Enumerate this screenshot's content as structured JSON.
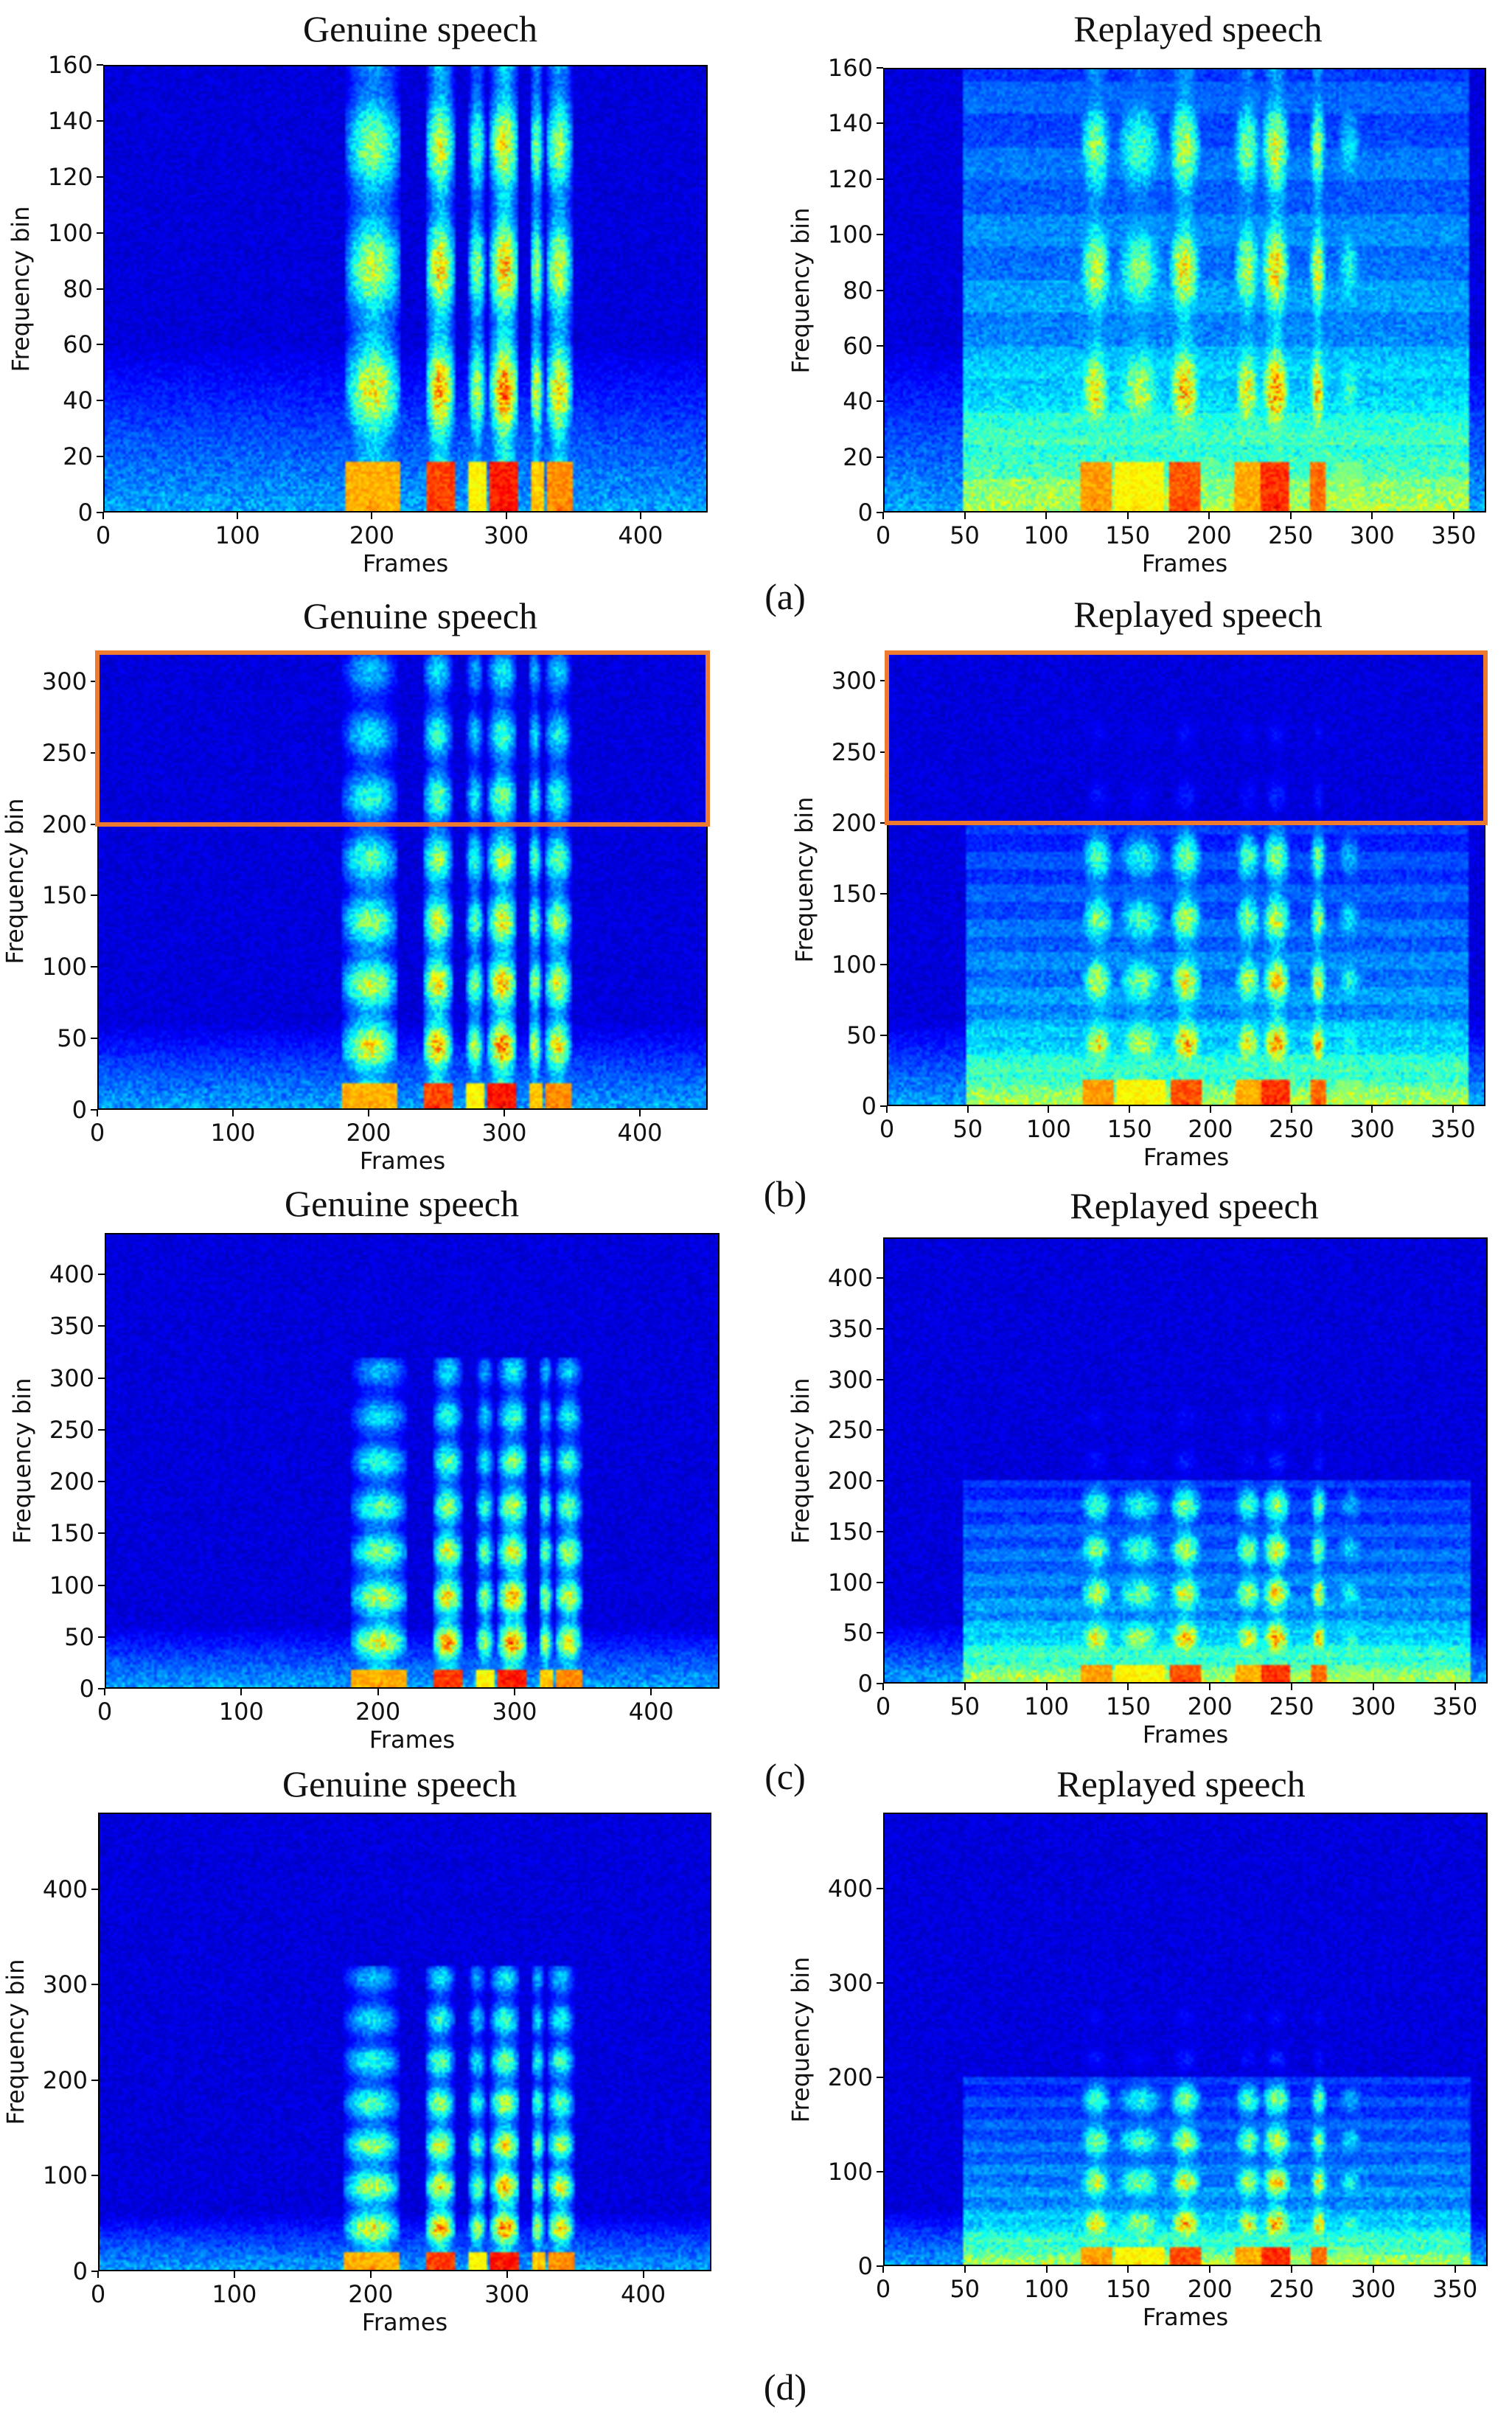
{
  "chart_data": [
    {
      "type": "heatmap",
      "panel": "a-genuine",
      "title": "Genuine speech",
      "xlabel": "Frames",
      "ylabel": "Frequency bin",
      "xlim": [
        0,
        450
      ],
      "ylim": [
        0,
        160
      ],
      "xticks": [
        0,
        100,
        200,
        300,
        400
      ],
      "yticks": [
        0,
        20,
        40,
        60,
        80,
        100,
        120,
        140,
        160
      ],
      "variant": "genuine"
    },
    {
      "type": "heatmap",
      "panel": "a-replayed",
      "title": "Replayed speech",
      "xlabel": "Frames",
      "ylabel": "Frequency bin",
      "xlim": [
        0,
        370
      ],
      "ylim": [
        0,
        160
      ],
      "xticks": [
        0,
        50,
        100,
        150,
        200,
        250,
        300,
        350
      ],
      "yticks": [
        0,
        20,
        40,
        60,
        80,
        100,
        120,
        140,
        160
      ],
      "variant": "replayed"
    },
    {
      "type": "heatmap",
      "panel": "b-genuine",
      "title": "Genuine speech",
      "xlabel": "Frames",
      "ylabel": "Frequency bin",
      "xlim": [
        0,
        450
      ],
      "ylim": [
        0,
        320
      ],
      "xticks": [
        0,
        100,
        200,
        300,
        400
      ],
      "yticks": [
        0,
        50,
        100,
        150,
        200,
        250,
        300
      ],
      "variant": "genuine",
      "highlight_range": [
        200,
        320
      ]
    },
    {
      "type": "heatmap",
      "panel": "b-replayed",
      "title": "Replayed speech",
      "xlabel": "Frames",
      "ylabel": "Frequency bin",
      "xlim": [
        0,
        370
      ],
      "ylim": [
        0,
        320
      ],
      "xticks": [
        0,
        50,
        100,
        150,
        200,
        250,
        300,
        350
      ],
      "yticks": [
        0,
        50,
        100,
        150,
        200,
        250,
        300
      ],
      "variant": "replayed",
      "highlight_range": [
        200,
        320
      ]
    },
    {
      "type": "heatmap",
      "panel": "c-genuine",
      "title": "Genuine speech",
      "xlabel": "Frames",
      "ylabel": "Frequency bin",
      "xlim": [
        0,
        450
      ],
      "ylim": [
        0,
        440
      ],
      "xticks": [
        0,
        100,
        200,
        300,
        400
      ],
      "yticks": [
        0,
        50,
        100,
        150,
        200,
        250,
        300,
        350,
        400
      ],
      "variant": "genuine"
    },
    {
      "type": "heatmap",
      "panel": "c-replayed",
      "title": "Replayed speech",
      "xlabel": "Frames",
      "ylabel": "Frequency bin",
      "xlim": [
        0,
        370
      ],
      "ylim": [
        0,
        440
      ],
      "xticks": [
        0,
        50,
        100,
        150,
        200,
        250,
        300,
        350
      ],
      "yticks": [
        0,
        50,
        100,
        150,
        200,
        250,
        300,
        350,
        400
      ],
      "variant": "replayed"
    },
    {
      "type": "heatmap",
      "panel": "d-genuine",
      "title": "Genuine speech",
      "xlabel": "Frames",
      "ylabel": "Frequency bin",
      "xlim": [
        0,
        450
      ],
      "ylim": [
        0,
        480
      ],
      "xticks": [
        0,
        100,
        200,
        300,
        400
      ],
      "yticks": [
        0,
        100,
        200,
        300,
        400
      ],
      "variant": "genuine"
    },
    {
      "type": "heatmap",
      "panel": "d-replayed",
      "title": "Replayed speech",
      "xlabel": "Frames",
      "ylabel": "Frequency bin",
      "xlim": [
        0,
        370
      ],
      "ylim": [
        0,
        480
      ],
      "xticks": [
        0,
        50,
        100,
        150,
        200,
        250,
        300,
        350
      ],
      "yticks": [
        0,
        100,
        200,
        300,
        400
      ],
      "variant": "replayed"
    }
  ],
  "row_labels": [
    "(a)",
    "(b)",
    "(c)",
    "(d)"
  ],
  "colors": {
    "highlight": "#ee7a30"
  }
}
